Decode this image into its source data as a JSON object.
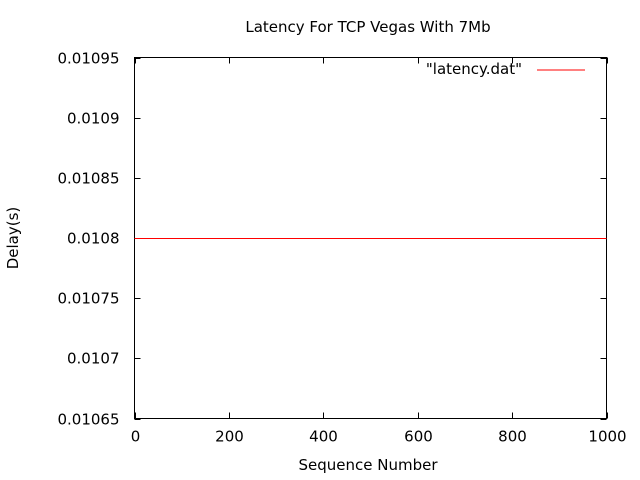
{
  "chart_data": {
    "type": "line",
    "title": "Latency For TCP Vegas With 7Mb",
    "xlabel": "Sequence Number",
    "ylabel": "Delay(s)",
    "xlim": [
      0,
      1000
    ],
    "ylim": [
      0.01065,
      0.01095
    ],
    "x_ticks": [
      0,
      200,
      400,
      600,
      800,
      1000
    ],
    "x_tick_labels": [
      "0",
      "200",
      "400",
      "600",
      "800",
      "1000"
    ],
    "y_ticks": [
      0.01065,
      0.0107,
      0.01075,
      0.0108,
      0.01085,
      0.0109,
      0.01095
    ],
    "y_tick_labels": [
      "0.01065",
      "0.0107",
      "0.01075",
      "0.0108",
      "0.01085",
      "0.0109",
      "0.01095"
    ],
    "grid": false,
    "legend_position": "top-right",
    "series": [
      {
        "name": "\"latency.dat\"",
        "color": "#ff0000",
        "x": [
          0,
          1000
        ],
        "y": [
          0.0108,
          0.0108
        ]
      }
    ]
  }
}
